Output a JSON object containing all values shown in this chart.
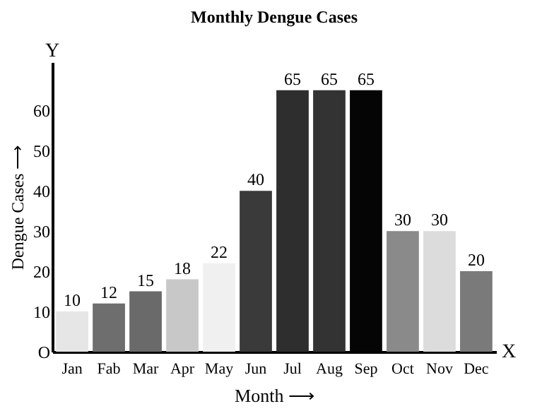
{
  "chart_data": {
    "type": "bar",
    "title": "Monthly Dengue Cases",
    "xlabel": "Month ⟶",
    "ylabel": "Dengue Cases ⟶",
    "categories": [
      "Jan",
      "Fab",
      "Mar",
      "Apr",
      "May",
      "Jun",
      "Jul",
      "Aug",
      "Sep",
      "Oct",
      "Nov",
      "Dec"
    ],
    "values": [
      10,
      12,
      15,
      18,
      22,
      40,
      65,
      65,
      65,
      30,
      30,
      20
    ],
    "colors": [
      "#e6e6e6",
      "#6e6e6e",
      "#6a6a6a",
      "#c8c8c8",
      "#f0f0f0",
      "#3a3a3a",
      "#2e2e2e",
      "#333333",
      "#050505",
      "#8a8a8a",
      "#dcdcdc",
      "#7a7a7a"
    ],
    "ylim": [
      0,
      72
    ],
    "yticks": [
      {
        "value": 0,
        "label": "O"
      },
      10,
      20,
      30,
      40,
      50,
      60
    ],
    "data_labels": true,
    "grid": false,
    "annotations": [
      "Y",
      "X"
    ]
  }
}
